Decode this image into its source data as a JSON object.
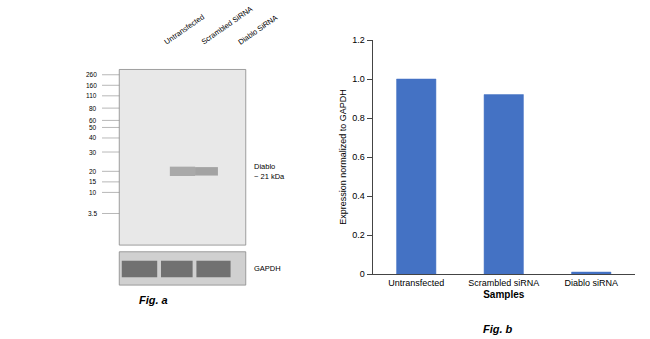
{
  "chart_data": {
    "type": "bar",
    "categories": [
      "Untransfected",
      "Scrambled siRNA",
      "Diablo siRNA"
    ],
    "values": [
      1.0,
      0.92,
      0.01
    ],
    "color": "#4472C4",
    "xlabel": "Samples",
    "ylabel": "Expression normalized to GAPDH",
    "ylim": [
      0,
      1.2
    ],
    "yticks": [
      0,
      0.2,
      0.4,
      0.6,
      0.8,
      {
        "value": 1.0,
        "label": "1.0"
      },
      1.2
    ],
    "grid": false,
    "annotations": [
      "Fig. b",
      "Fig. a",
      "Untransfected",
      "Scrambled SiRNA",
      "Diablo SiRNA",
      "Diablo\n~ 21 kDa",
      "GAPDH",
      "260",
      "160",
      "110",
      "80",
      "60",
      "50",
      "40",
      "30",
      "20",
      "15",
      "10",
      "3.5"
    ]
  }
}
